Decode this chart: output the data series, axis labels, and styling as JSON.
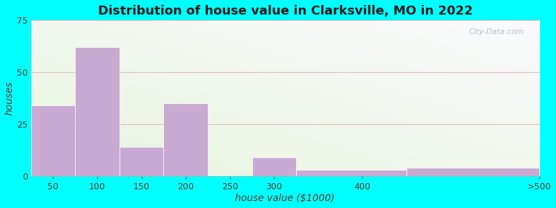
{
  "title": "Distribution of house value in Clarksville, MO in 2022",
  "xlabel": "house value ($1000)",
  "ylabel": "houses",
  "bin_edges": [
    25,
    75,
    125,
    175,
    225,
    275,
    325,
    450,
    600
  ],
  "xtick_positions": [
    50,
    100,
    150,
    200,
    250,
    300,
    400,
    600
  ],
  "xtick_labels": [
    "50",
    "100",
    "150",
    "200",
    "250",
    "300",
    "400",
    ">500"
  ],
  "bar_heights": [
    34,
    62,
    14,
    35,
    0,
    9,
    3,
    4
  ],
  "bar_color": "#c9aad2",
  "bar_edgecolor": "#ffffff",
  "ylim": [
    0,
    75
  ],
  "yticks": [
    0,
    25,
    50,
    75
  ],
  "grid_color": "#e8b8b8",
  "outer_bg": "#00ffff",
  "title_fontsize": 13,
  "axis_label_fontsize": 10,
  "tick_fontsize": 9,
  "watermark_text": "City-Data.com",
  "tick_color": "#5a3a2a",
  "title_color": "#1a1a1a"
}
